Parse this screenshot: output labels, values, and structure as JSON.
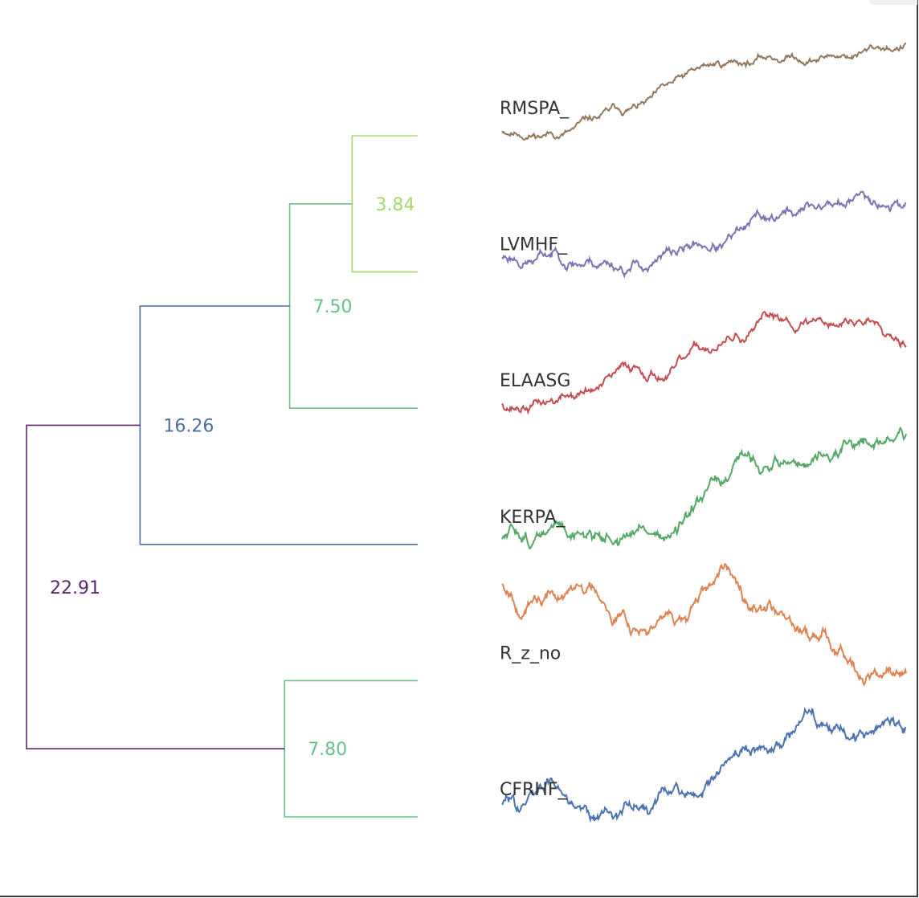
{
  "chart_data": {
    "type": "dendrogram",
    "leaves": [
      {
        "label": "RMSPA_",
        "color": "#937860"
      },
      {
        "label": "LVMHF_",
        "color": "#8172b3"
      },
      {
        "label": "ELAASG",
        "color": "#c44e52"
      },
      {
        "label": "KERPA_",
        "color": "#55a868"
      },
      {
        "label": "R_z_no",
        "color": "#dd8452"
      },
      {
        "label": "CFRHF_",
        "color": "#4c72b0"
      }
    ],
    "merges": [
      {
        "left": 0,
        "right": 1,
        "height": 3.84,
        "label": "3.84",
        "color": "#a6d96a"
      },
      {
        "left": "m0",
        "right": 2,
        "height": 7.5,
        "label": "7.50",
        "color": "#66c28a"
      },
      {
        "left": "m1",
        "right": 3,
        "height": 16.26,
        "label": "16.26",
        "color": "#4c6fa0"
      },
      {
        "left": 4,
        "right": 5,
        "height": 7.8,
        "label": "7.80",
        "color": "#66c28a"
      },
      {
        "left": "m2",
        "right": "m3",
        "height": 22.91,
        "label": "22.91",
        "color": "#5b2a6e"
      }
    ],
    "max_height": 22.91
  }
}
